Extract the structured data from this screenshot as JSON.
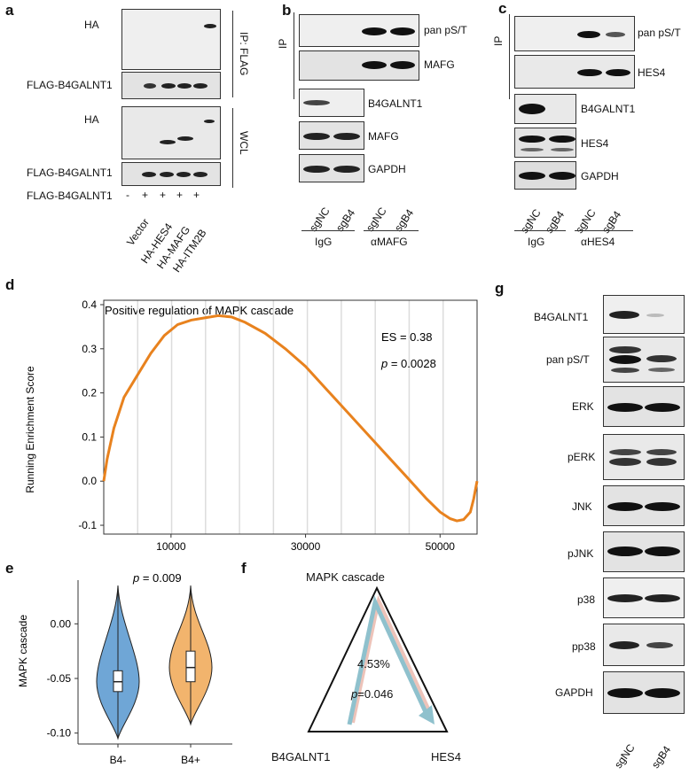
{
  "panels": {
    "a": "a",
    "b": "b",
    "c": "c",
    "d": "d",
    "e": "e",
    "f": "f",
    "g": "g"
  },
  "panel_a": {
    "blot_labels": [
      "HA",
      "FLAG-B4GALNT1",
      "HA",
      "FLAG-B4GALNT1"
    ],
    "row_label": "FLAG-B4GALNT1",
    "signs": [
      "-",
      "+",
      "+",
      "+",
      "+"
    ],
    "lanes": [
      "Vector",
      "HA-HES4",
      "HA-MAFG",
      "HA-ITM2B"
    ],
    "side_labels": [
      "IP: FLAG",
      "WCL"
    ]
  },
  "panel_b": {
    "ip_label": "IP",
    "blot_labels": [
      "pan pS/T",
      "MAFG",
      "B4GALNT1",
      "MAFG",
      "GAPDH"
    ],
    "lanes": [
      "sgNC",
      "sgB4",
      "sgNC",
      "sgB4"
    ],
    "groups": [
      "IgG",
      "αMAFG"
    ]
  },
  "panel_c": {
    "ip_label": "IP",
    "blot_labels": [
      "pan pS/T",
      "HES4",
      "B4GALNT1",
      "HES4",
      "GAPDH"
    ],
    "lanes": [
      "sgNC",
      "sgB4",
      "sgNC",
      "sgB4"
    ],
    "groups": [
      "IgG",
      "αHES4"
    ]
  },
  "panel_d": {
    "es_text": "ES = 0.38",
    "p_label": "p",
    "p_value": " = 0.0028"
  },
  "panel_e": {
    "p_label": "p",
    "p_value": " = 0.009"
  },
  "panel_f": {
    "top": "MAPK cascade",
    "left": "B4GALNT1",
    "right": "HES4",
    "percent": "4.53%",
    "p_label": "p",
    "p_value": "=0.046"
  },
  "panel_g": {
    "blot_labels": [
      "B4GALNT1",
      "pan pS/T",
      "ERK",
      "pERK",
      "JNK",
      "pJNK",
      "p38",
      "pp38",
      "GAPDH"
    ],
    "lanes": [
      "sgNC",
      "sgB4"
    ]
  },
  "chart_data": [
    {
      "type": "line",
      "title": "Positive regulation of MAPK cascade",
      "xlabel": "",
      "ylabel": "Running Enrichment Score",
      "xlim": [
        0,
        55500
      ],
      "ylim": [
        -0.12,
        0.41
      ],
      "xticks": [
        10000,
        30000,
        50000
      ],
      "yticks": [
        -0.1,
        0.0,
        0.1,
        0.2,
        0.3,
        0.4
      ],
      "series": [
        {
          "color": "#e8821e",
          "x": [
            0,
            500,
            1500,
            3000,
            5000,
            7000,
            9000,
            11000,
            13000,
            15000,
            17000,
            19000,
            21000,
            24000,
            27000,
            30000,
            33000,
            36000,
            39000,
            42000,
            45000,
            48000,
            50000,
            51500,
            52500,
            53500,
            54500,
            55000,
            55500
          ],
          "y": [
            0.0,
            0.05,
            0.12,
            0.19,
            0.24,
            0.29,
            0.33,
            0.355,
            0.365,
            0.37,
            0.375,
            0.372,
            0.36,
            0.335,
            0.3,
            0.26,
            0.21,
            0.16,
            0.11,
            0.06,
            0.01,
            -0.04,
            -0.07,
            -0.085,
            -0.09,
            -0.087,
            -0.07,
            -0.04,
            0.0
          ]
        }
      ],
      "annotation": "ES = 0.38, p = 0.0028"
    },
    {
      "type": "violin",
      "title": "",
      "xlabel": "",
      "ylabel": "MAPK cascade",
      "categories": [
        "B4-",
        "B4+"
      ],
      "ylim": [
        -0.11,
        0.04
      ],
      "yticks": [
        -0.1,
        -0.05,
        0.0
      ],
      "ytick_labels": [
        "-0.10",
        "-0.05",
        "0.00"
      ],
      "series": [
        {
          "name": "B4-",
          "color": "#6fa6d6",
          "min": -0.105,
          "q1": -0.062,
          "median": -0.053,
          "q3": -0.043,
          "max": 0.035
        },
        {
          "name": "B4+",
          "color": "#f2b46d",
          "min": -0.092,
          "q1": -0.053,
          "median": -0.04,
          "q3": -0.025,
          "max": 0.035
        }
      ],
      "annotation": "p = 0.009"
    }
  ]
}
